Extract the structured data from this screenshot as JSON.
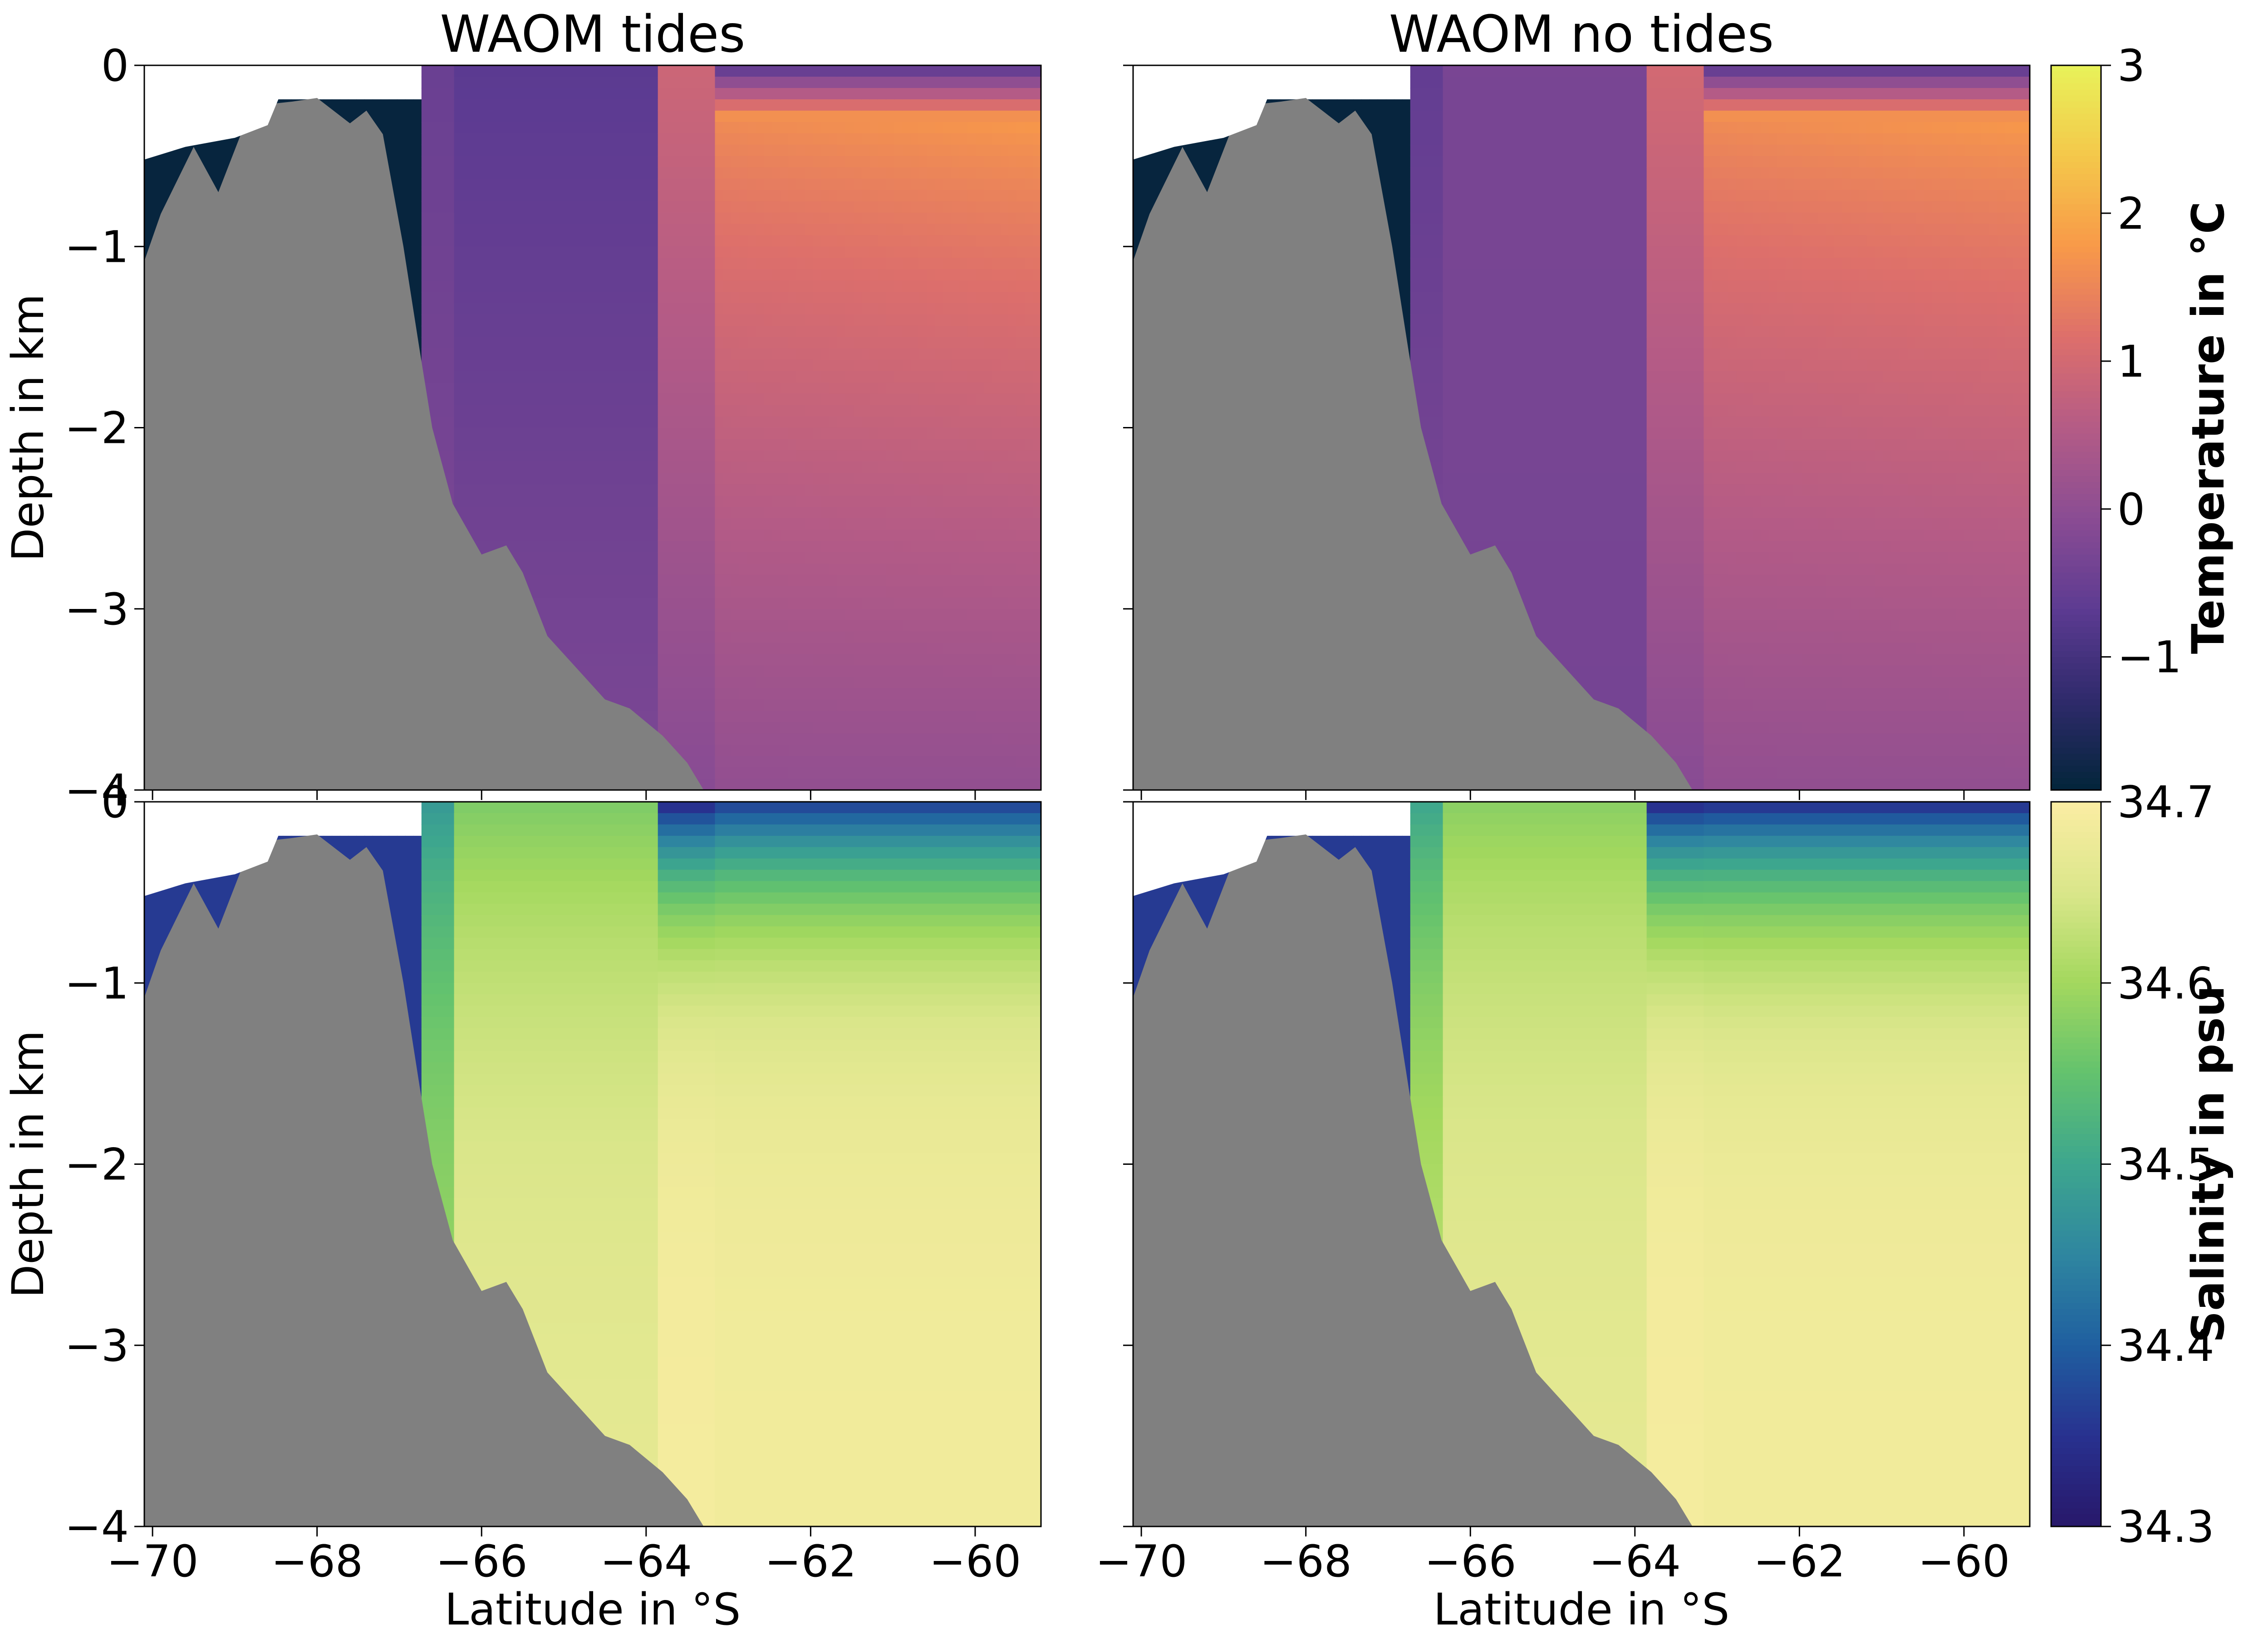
{
  "chart_data": {
    "type": "heatmap",
    "layout": "2x2 panels with two colorbars",
    "x_axis": {
      "label": "Latitude in °S",
      "range": [
        -70.1,
        -59.2
      ],
      "ticks": [
        -70,
        -68,
        -66,
        -64,
        -62,
        -60
      ],
      "tick_labels": [
        "−70",
        "−68",
        "−66",
        "−64",
        "−62",
        "−60"
      ]
    },
    "y_axis": {
      "label": "Depth in km",
      "range": [
        -4,
        0
      ],
      "ticks": [
        0,
        -1,
        -2,
        -3,
        -4
      ],
      "tick_labels": [
        "0",
        "−1",
        "−2",
        "−3",
        "−4"
      ]
    },
    "column_titles": [
      "WAOM tides",
      "WAOM no tides"
    ],
    "bathymetry_color": "#808080",
    "bathymetry_profile": {
      "lat": [
        -70.1,
        -69.9,
        -69.5,
        -69.2,
        -68.9,
        -68.7,
        -68.3,
        -68.0,
        -67.6,
        -67.4,
        -67.2,
        -66.95,
        -66.75,
        -66.6,
        -66.35,
        -66.0,
        -65.7,
        -65.5,
        -65.2,
        -64.9,
        -64.5,
        -64.2,
        -63.8,
        -63.5,
        -63.3,
        -63.0,
        -59.2
      ],
      "depth": [
        -1.08,
        -0.82,
        -0.45,
        -0.7,
        -0.35,
        -0.22,
        -0.2,
        -0.18,
        -0.32,
        -0.25,
        -0.38,
        -1.0,
        -1.58,
        -2.0,
        -2.42,
        -2.7,
        -2.65,
        -2.8,
        -3.15,
        -3.3,
        -3.5,
        -3.55,
        -3.7,
        -3.85,
        -4.0,
        -4.0,
        -4.0
      ]
    },
    "rows": [
      {
        "variable": "temperature",
        "colorbar": {
          "label": "Temperature in °C",
          "range": [
            -1.9,
            3
          ],
          "ticks": [
            3,
            2,
            1,
            0,
            -1
          ],
          "tick_labels": [
            "3",
            "2",
            "1",
            "0",
            "−1"
          ],
          "colors": [
            "#03253a",
            "#2f2a6c",
            "#5d3b92",
            "#8a4c93",
            "#b45b86",
            "#dd6f6b",
            "#f89949",
            "#f4c84a",
            "#e8f25a"
          ]
        },
        "panels": [
          {
            "title": "WAOM tides",
            "shelf": {
              "lat_max": -66.75,
              "value": -1.85,
              "cavity_top_depth": -0.2
            },
            "columns": [
              {
                "lat_min": -66.75,
                "lat_max": -66.3,
                "surface": -0.5,
                "deep": -0.2
              },
              {
                "lat_min": -66.3,
                "lat_max": -63.85,
                "surface": -0.7,
                "deep": -0.25
              },
              {
                "lat_min": -63.85,
                "lat_max": -63.2,
                "surface": 0.9,
                "deep": -0.1
              },
              {
                "lat_min": -63.2,
                "lat_max": -59.2,
                "surface": -0.8,
                "deep": 0.05,
                "max_warm": 1.8
              }
            ]
          },
          {
            "title": "WAOM no tides",
            "shelf": {
              "lat_max": -66.75,
              "value": -1.85,
              "cavity_top_depth": -0.2
            },
            "columns": [
              {
                "lat_min": -66.75,
                "lat_max": -66.3,
                "surface": -0.6,
                "deep": -0.2
              },
              {
                "lat_min": -66.3,
                "lat_max": -63.85,
                "surface": -0.3,
                "deep": -0.35
              },
              {
                "lat_min": -63.85,
                "lat_max": -63.2,
                "surface": 1.0,
                "deep": -0.1
              },
              {
                "lat_min": -63.2,
                "lat_max": -59.2,
                "surface": -0.8,
                "deep": 0.05,
                "max_warm": 1.8
              }
            ]
          }
        ]
      },
      {
        "variable": "salinity",
        "colorbar": {
          "label": "Salinity in psu",
          "range": [
            34.3,
            34.7
          ],
          "ticks": [
            34.7,
            34.6,
            34.5,
            34.4,
            34.3
          ],
          "tick_labels": [
            "34.7",
            "34.6",
            "34.5",
            "34.4",
            "34.3"
          ],
          "colors": [
            "#28186a",
            "#28318f",
            "#1f5fa0",
            "#2f86a0",
            "#3da68e",
            "#63c26e",
            "#a3d85e",
            "#dae68a",
            "#fbeda3"
          ]
        },
        "panels": [
          {
            "title": "WAOM tides",
            "shelf": {
              "lat_max": -66.75,
              "value": 34.36,
              "cavity_top_depth": -0.2
            },
            "columns": [
              {
                "lat_min": -66.75,
                "lat_max": -66.3,
                "surface": 34.48,
                "deep": 34.6
              },
              {
                "lat_min": -66.3,
                "lat_max": -63.85,
                "surface": 34.57,
                "deep": 34.67
              },
              {
                "lat_min": -63.85,
                "lat_max": -63.2,
                "surface": 34.33,
                "deep": 34.69
              },
              {
                "lat_min": -63.2,
                "lat_max": -59.2,
                "surface": 34.36,
                "deep": 34.685
              }
            ]
          },
          {
            "title": "WAOM no tides",
            "shelf": {
              "lat_max": -66.75,
              "value": 34.36,
              "cavity_top_depth": -0.2
            },
            "columns": [
              {
                "lat_min": -66.75,
                "lat_max": -66.3,
                "surface": 34.5,
                "deep": 34.63
              },
              {
                "lat_min": -66.3,
                "lat_max": -63.85,
                "surface": 34.58,
                "deep": 34.67
              },
              {
                "lat_min": -63.85,
                "lat_max": -63.2,
                "surface": 34.33,
                "deep": 34.69
              },
              {
                "lat_min": -63.2,
                "lat_max": -59.2,
                "surface": 34.34,
                "deep": 34.685
              }
            ]
          }
        ]
      }
    ]
  }
}
